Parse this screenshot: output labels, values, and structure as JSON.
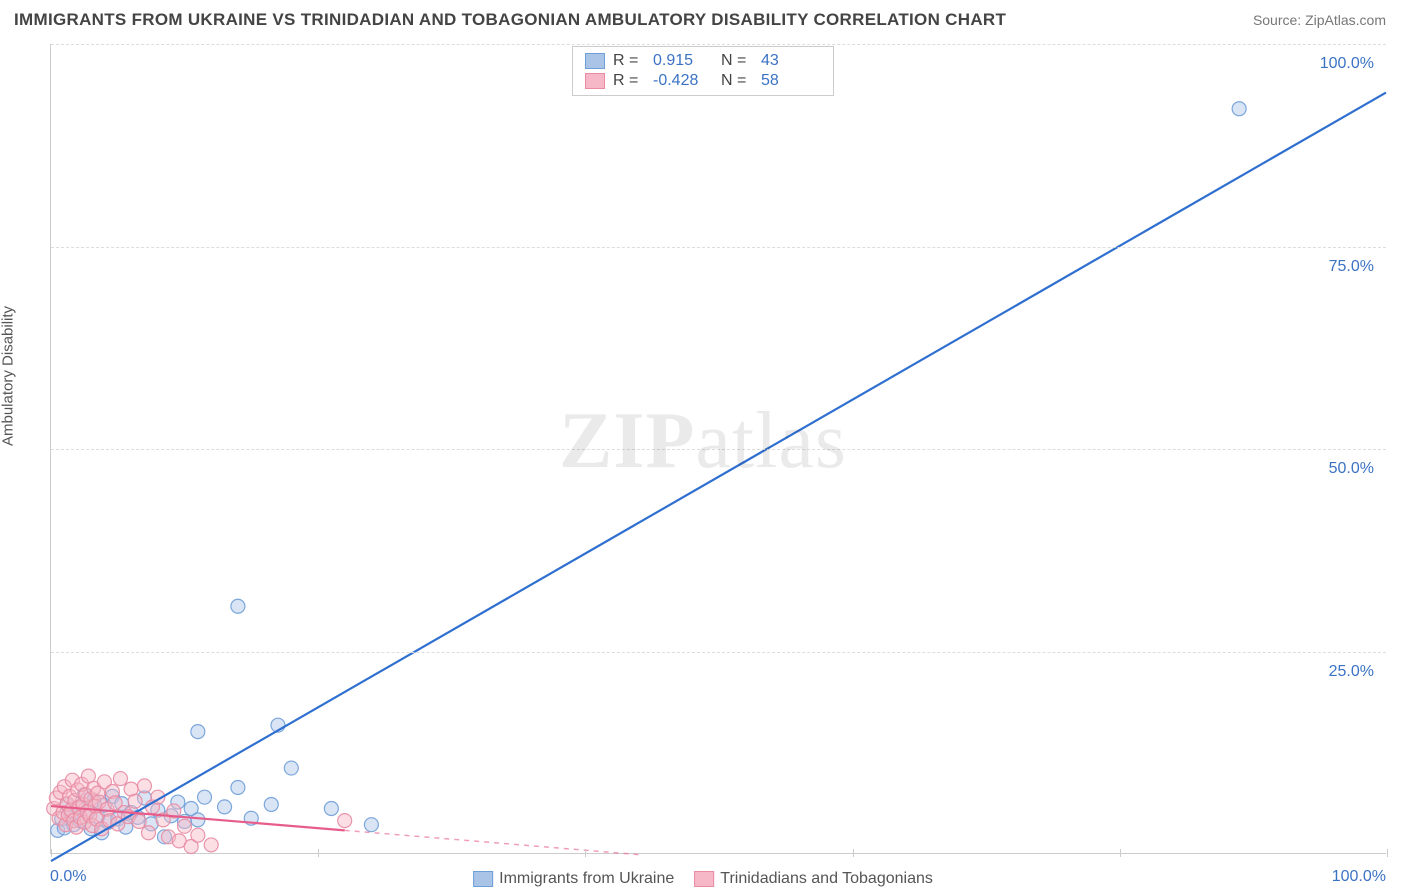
{
  "title": "IMMIGRANTS FROM UKRAINE VS TRINIDADIAN AND TOBAGONIAN AMBULATORY DISABILITY CORRELATION CHART",
  "source_label": "Source: ",
  "source_value": "ZipAtlas.com",
  "ylabel": "Ambulatory Disability",
  "watermark_bold": "ZIP",
  "watermark_light": "atlas",
  "chart": {
    "type": "scatter",
    "xlim": [
      0,
      100
    ],
    "ylim": [
      0,
      100
    ],
    "x_ticks": [
      0,
      20,
      40,
      60,
      80,
      100
    ],
    "y_gridlines": [
      25,
      50,
      75,
      100
    ],
    "y_tick_labels": [
      "25.0%",
      "50.0%",
      "75.0%",
      "100.0%"
    ],
    "x_tick_labels": {
      "0": "0.0%",
      "100": "100.0%"
    },
    "background_color": "#ffffff",
    "grid_color": "#dddddd",
    "axis_color": "#cccccc",
    "tick_label_color": "#3b73c4",
    "marker_radius": 7,
    "marker_opacity": 0.45,
    "marker_stroke_opacity": 0.9,
    "line_width": 2.2
  },
  "series": [
    {
      "key": "ukraine",
      "label": "Immigrants from Ukraine",
      "color_fill": "#aac4e8",
      "color_stroke": "#6f9fd8",
      "line_color": "#2f6fd0",
      "r_label": "R =",
      "r_value": "0.915",
      "n_label": "N =",
      "n_value": "43",
      "trend": {
        "x1": 0,
        "y1": -1,
        "x2": 100,
        "y2": 94,
        "dash": "none"
      },
      "points": [
        [
          0.5,
          2.8
        ],
        [
          0.8,
          4.2
        ],
        [
          1.0,
          3.1
        ],
        [
          1.2,
          6.0
        ],
        [
          1.5,
          4.8
        ],
        [
          1.7,
          3.5
        ],
        [
          2.0,
          5.6
        ],
        [
          2.2,
          4.0
        ],
        [
          2.5,
          7.2
        ],
        [
          2.8,
          5.1
        ],
        [
          3.0,
          3.0
        ],
        [
          3.2,
          6.5
        ],
        [
          3.5,
          4.5
        ],
        [
          3.8,
          2.5
        ],
        [
          4.0,
          5.9
        ],
        [
          4.3,
          3.8
        ],
        [
          4.6,
          7.0
        ],
        [
          5.0,
          4.2
        ],
        [
          5.3,
          6.1
        ],
        [
          5.6,
          3.2
        ],
        [
          6.0,
          5.0
        ],
        [
          6.5,
          4.4
        ],
        [
          7.0,
          6.8
        ],
        [
          7.5,
          3.6
        ],
        [
          8.0,
          5.3
        ],
        [
          8.5,
          2.0
        ],
        [
          9.0,
          4.6
        ],
        [
          9.5,
          6.3
        ],
        [
          10.0,
          3.9
        ],
        [
          10.5,
          5.5
        ],
        [
          11.0,
          4.1
        ],
        [
          11.5,
          6.9
        ],
        [
          13.0,
          5.7
        ],
        [
          14.0,
          8.1
        ],
        [
          15.0,
          4.3
        ],
        [
          16.5,
          6.0
        ],
        [
          18.0,
          10.5
        ],
        [
          11.0,
          15.0
        ],
        [
          17.0,
          15.8
        ],
        [
          21.0,
          5.5
        ],
        [
          24.0,
          3.5
        ],
        [
          14.0,
          30.5
        ],
        [
          89.0,
          92.0
        ]
      ]
    },
    {
      "key": "trinidad",
      "label": "Trinidadians and Tobagonians",
      "color_fill": "#f6b8c6",
      "color_stroke": "#e88ba3",
      "line_color": "#e75d8a",
      "r_label": "R =",
      "r_value": "-0.428",
      "n_label": "N =",
      "n_value": "58",
      "trend": {
        "x1": 0,
        "y1": 5.8,
        "x2": 22,
        "y2": 2.8,
        "dash": "none"
      },
      "trend_ext": {
        "x1": 22,
        "y1": 2.8,
        "x2": 44,
        "y2": -0.2,
        "dash": "5,5"
      },
      "points": [
        [
          0.2,
          5.5
        ],
        [
          0.4,
          6.8
        ],
        [
          0.6,
          4.3
        ],
        [
          0.7,
          7.5
        ],
        [
          0.9,
          5.0
        ],
        [
          1.0,
          8.2
        ],
        [
          1.1,
          3.5
        ],
        [
          1.2,
          6.1
        ],
        [
          1.3,
          4.7
        ],
        [
          1.4,
          7.0
        ],
        [
          1.5,
          5.3
        ],
        [
          1.6,
          9.0
        ],
        [
          1.7,
          4.0
        ],
        [
          1.8,
          6.5
        ],
        [
          1.9,
          3.2
        ],
        [
          2.0,
          7.8
        ],
        [
          2.1,
          5.6
        ],
        [
          2.2,
          4.4
        ],
        [
          2.3,
          8.5
        ],
        [
          2.4,
          6.0
        ],
        [
          2.5,
          3.8
        ],
        [
          2.6,
          7.2
        ],
        [
          2.7,
          5.1
        ],
        [
          2.8,
          9.5
        ],
        [
          2.9,
          4.6
        ],
        [
          3.0,
          6.7
        ],
        [
          3.1,
          3.4
        ],
        [
          3.2,
          8.0
        ],
        [
          3.3,
          5.8
        ],
        [
          3.4,
          4.2
        ],
        [
          3.5,
          7.4
        ],
        [
          3.6,
          6.3
        ],
        [
          3.8,
          3.0
        ],
        [
          4.0,
          8.8
        ],
        [
          4.2,
          5.4
        ],
        [
          4.4,
          4.0
        ],
        [
          4.6,
          7.6
        ],
        [
          4.8,
          6.2
        ],
        [
          5.0,
          3.6
        ],
        [
          5.2,
          9.2
        ],
        [
          5.5,
          5.0
        ],
        [
          5.8,
          4.5
        ],
        [
          6.0,
          7.9
        ],
        [
          6.3,
          6.4
        ],
        [
          6.6,
          3.9
        ],
        [
          7.0,
          8.3
        ],
        [
          7.3,
          2.5
        ],
        [
          7.6,
          5.7
        ],
        [
          8.0,
          6.9
        ],
        [
          8.4,
          4.1
        ],
        [
          8.8,
          2.0
        ],
        [
          9.2,
          5.2
        ],
        [
          9.6,
          1.5
        ],
        [
          10.0,
          3.3
        ],
        [
          10.5,
          0.8
        ],
        [
          11.0,
          2.2
        ],
        [
          12.0,
          1.0
        ],
        [
          22.0,
          4.0
        ]
      ]
    }
  ]
}
